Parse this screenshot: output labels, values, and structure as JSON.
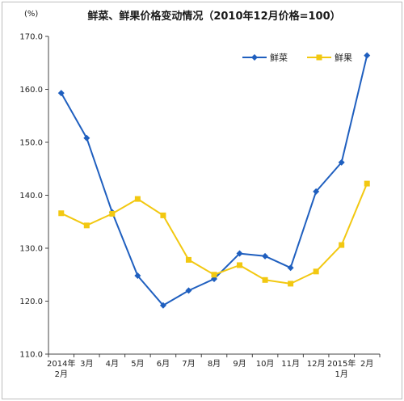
{
  "chart_data": {
    "type": "line",
    "title": "鲜菜、鲜果价格变动情况（2010年12月价格=100）",
    "ylabel": "(%)",
    "ylim": [
      110,
      170
    ],
    "yticks": [
      "110.0",
      "120.0",
      "130.0",
      "140.0",
      "150.0",
      "160.0",
      "170.0"
    ],
    "categories": [
      [
        "2014年",
        "2月"
      ],
      [
        "3月"
      ],
      [
        "4月"
      ],
      [
        "5月"
      ],
      [
        "6月"
      ],
      [
        "7月"
      ],
      [
        "8月"
      ],
      [
        "9月"
      ],
      [
        "10月"
      ],
      [
        "11月"
      ],
      [
        "12月"
      ],
      [
        "2015年",
        "1月"
      ],
      [
        "2月"
      ]
    ],
    "grid": false,
    "legend_position": "top-right",
    "series": [
      {
        "name": "鲜菜",
        "color": "#1f5fbf",
        "marker": "diamond",
        "values": [
          159.3,
          150.8,
          136.8,
          124.8,
          119.2,
          122.0,
          124.2,
          129.0,
          128.5,
          126.3,
          140.7,
          146.2,
          166.4
        ]
      },
      {
        "name": "鲜果",
        "color": "#f2c811",
        "marker": "square",
        "values": [
          136.6,
          134.3,
          136.5,
          139.3,
          136.2,
          127.8,
          125.0,
          126.8,
          124.0,
          123.3,
          125.6,
          130.6,
          142.2
        ]
      }
    ]
  }
}
